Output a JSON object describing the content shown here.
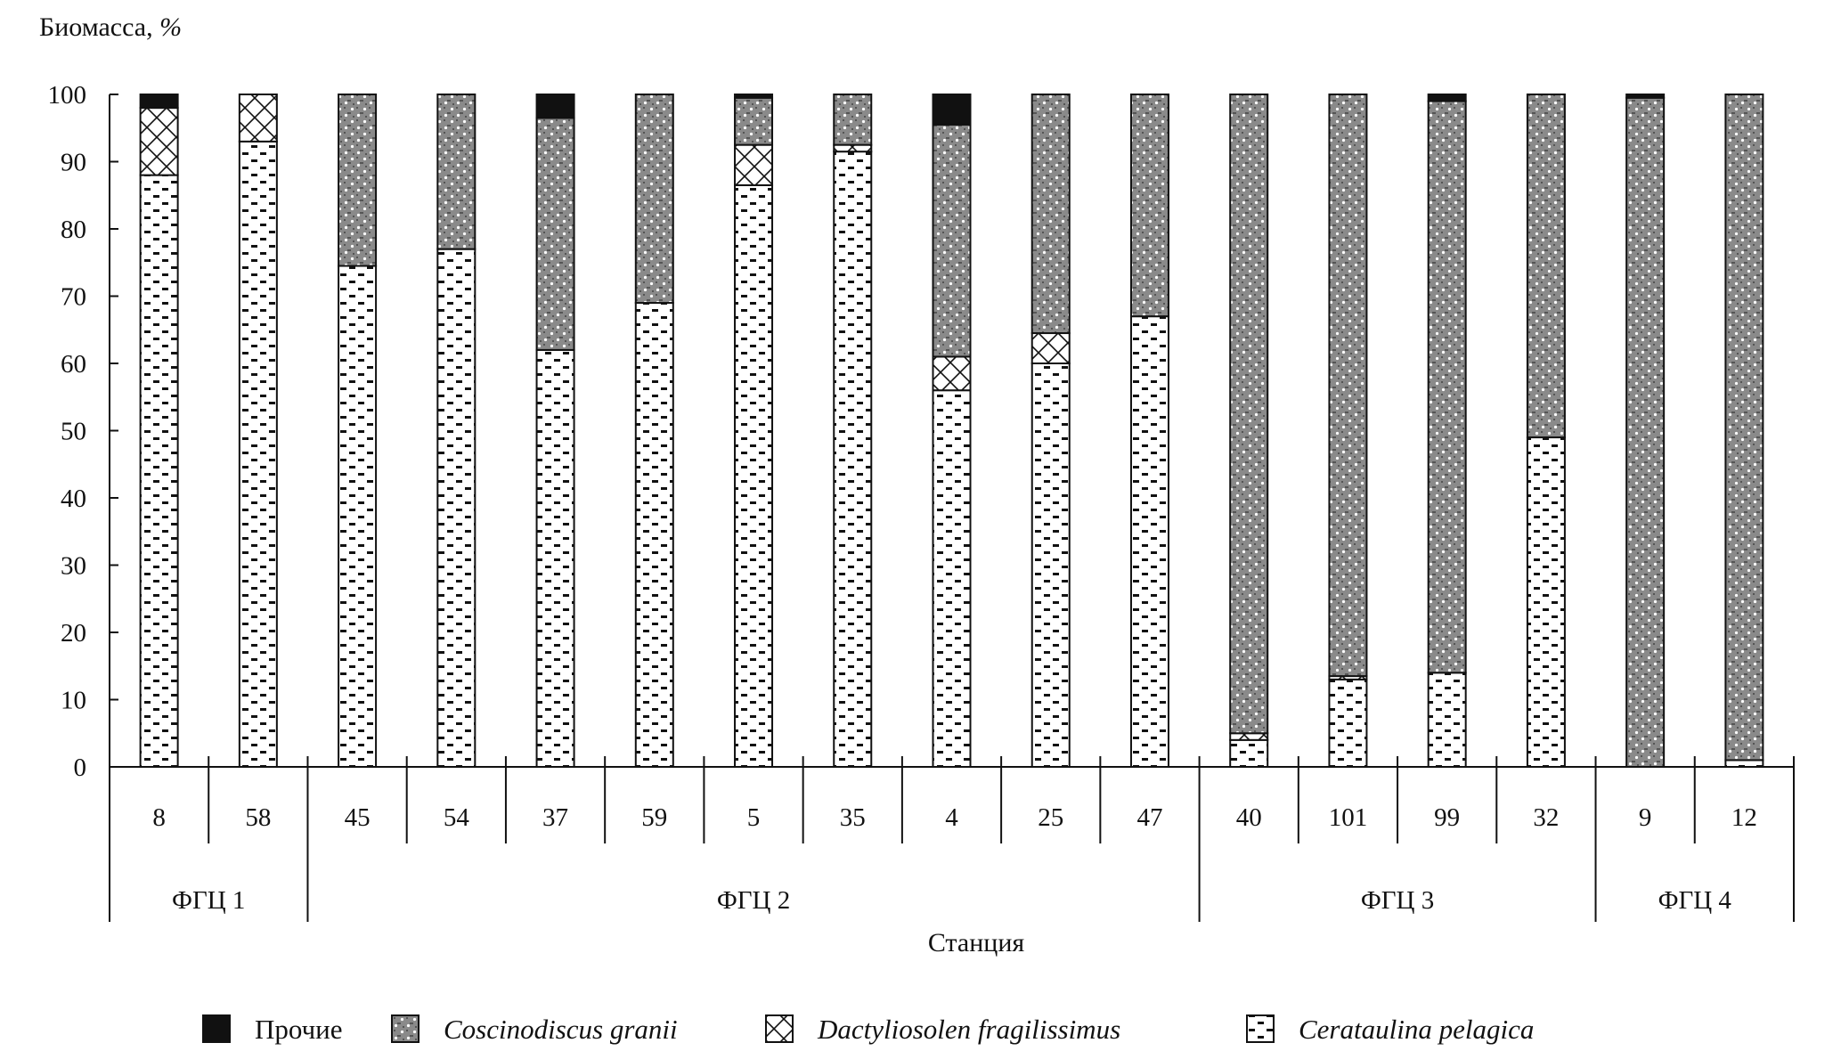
{
  "chart_data": {
    "type": "bar",
    "stacked": true,
    "ylabel_main": "Биомасса, ",
    "ylabel_unit": "%",
    "xlabel": "Станция",
    "ylim": [
      0,
      100
    ],
    "yticks": [
      0,
      10,
      20,
      30,
      40,
      50,
      60,
      70,
      80,
      90,
      100
    ],
    "grid": false,
    "legend_position": "bottom",
    "categories": [
      "8",
      "58",
      "45",
      "54",
      "37",
      "59",
      "5",
      "35",
      "4",
      "25",
      "47",
      "40",
      "101",
      "99",
      "32",
      "9",
      "12"
    ],
    "groups": [
      {
        "label": "ФГЦ 1",
        "count": 2
      },
      {
        "label": "ФГЦ 2",
        "count": 9
      },
      {
        "label": "ФГЦ 3",
        "count": 4
      },
      {
        "label": "ФГЦ 4",
        "count": 2
      }
    ],
    "series": [
      {
        "name": "Cerataulina pelagica",
        "pattern": "dashes",
        "italic": true,
        "values": [
          88,
          93,
          74.5,
          77,
          62,
          69,
          86.5,
          91.5,
          56,
          60,
          67,
          4,
          13,
          14,
          49,
          0,
          1
        ]
      },
      {
        "name": "Dactyliosolen fragilissimus",
        "pattern": "crosshatch",
        "italic": true,
        "values": [
          10,
          7,
          0,
          0,
          0,
          0,
          6,
          1,
          5,
          4.5,
          0,
          1,
          0.5,
          0,
          0,
          0,
          0
        ]
      },
      {
        "name": "Coscinodiscus granii",
        "pattern": "dotted-gray",
        "italic": true,
        "values": [
          0,
          0,
          25.5,
          23,
          34.5,
          31,
          7,
          7.5,
          34.5,
          35.5,
          33,
          95,
          86.5,
          85,
          51,
          99.5,
          99
        ]
      },
      {
        "name": "Прочие",
        "pattern": "solid-black",
        "italic": false,
        "values": [
          2,
          0,
          0,
          0,
          3.5,
          0,
          0.5,
          0,
          4.5,
          0,
          0,
          0,
          0,
          1,
          0,
          0.5,
          0
        ]
      }
    ],
    "legend_order": [
      3,
      2,
      1,
      0
    ]
  }
}
